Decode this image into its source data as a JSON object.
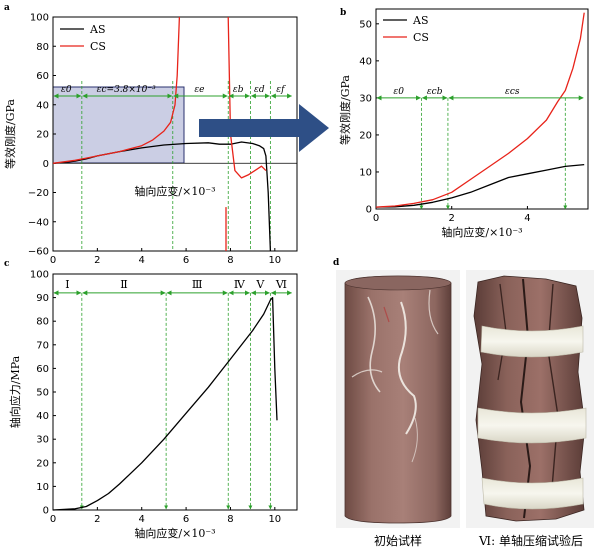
{
  "panels": {
    "a": "a",
    "b": "b",
    "c": "c",
    "d": "d"
  },
  "colors": {
    "AS": "#000000",
    "CS": "#e8231a",
    "guide": "#2ca02c",
    "arrow": "#2e4f86",
    "box_fill": "#b9bedb",
    "box_stroke": "#28306e"
  },
  "chart_data": [
    {
      "id": "a",
      "type": "line",
      "xlabel": "轴向应变/×10⁻³",
      "ylabel": "等效刚度/GPa",
      "xlim": [
        0,
        11
      ],
      "ylim": [
        -60,
        100
      ],
      "xticks": [
        "0",
        "2",
        "4",
        "6",
        "8",
        "10"
      ],
      "yticks": [
        "−60",
        "−40",
        "−20",
        "0",
        "20",
        "40",
        "60",
        "80",
        "100"
      ],
      "legend": [
        "AS",
        "CS"
      ],
      "legend_position": "top-left",
      "annotations": [
        "ε0",
        "εc=3.8×10⁻³",
        "εe",
        "εb",
        "εd",
        "εf"
      ],
      "series": [
        {
          "name": "AS",
          "x": [
            0,
            0.5,
            1,
            1.5,
            2,
            3,
            4,
            5,
            6,
            7,
            7.5,
            8,
            8.5,
            9,
            9.3,
            9.5,
            9.6,
            9.7,
            9.8
          ],
          "y": [
            0,
            0.5,
            1.5,
            3,
            5,
            8,
            10.5,
            12.5,
            13.5,
            14,
            13,
            13,
            14.5,
            13.5,
            12,
            10,
            5,
            -20,
            -60
          ]
        },
        {
          "name": "CS",
          "x": [
            0,
            0.5,
            1,
            1.5,
            2,
            3,
            4,
            4.5,
            5,
            5.3,
            5.5,
            5.6,
            5.7
          ],
          "y": [
            0,
            1,
            2,
            3.5,
            5,
            8,
            12,
            16,
            22,
            28,
            40,
            60,
            100
          ]
        },
        {
          "name": "CS",
          "x": [
            7.9,
            8,
            8.2,
            8.5,
            8.8,
            9.1,
            9.4,
            9.6
          ],
          "y": [
            100,
            20,
            -5,
            -10,
            -8,
            -5,
            -2,
            -5
          ]
        },
        {
          "name": "CS",
          "x": [
            7.8,
            7.8
          ],
          "y": [
            -30,
            -60
          ]
        }
      ]
    },
    {
      "id": "b",
      "type": "line",
      "xlabel": "轴向应变/×10⁻³",
      "ylabel": "等效刚度/GPa",
      "xlim": [
        0,
        5.6
      ],
      "ylim": [
        0,
        54
      ],
      "xticks": [
        "0",
        "2",
        "4"
      ],
      "yticks": [
        "0",
        "10",
        "20",
        "30",
        "40",
        "50"
      ],
      "legend": [
        "AS",
        "CS"
      ],
      "legend_position": "top-left",
      "annotations": [
        "ε0",
        "εcb",
        "εcs"
      ],
      "series": [
        {
          "name": "AS",
          "x": [
            0,
            0.5,
            1,
            1.5,
            2,
            2.5,
            3,
            3.5,
            4,
            4.5,
            5,
            5.5
          ],
          "y": [
            0.5,
            0.6,
            1,
            1.8,
            3,
            4.5,
            6.5,
            8.5,
            9.5,
            10.5,
            11.5,
            12
          ]
        },
        {
          "name": "CS",
          "x": [
            0,
            0.5,
            1,
            1.5,
            2,
            2.5,
            3,
            3.5,
            4,
            4.5,
            4.8,
            5,
            5.2,
            5.4,
            5.5
          ],
          "y": [
            0.5,
            0.8,
            1.5,
            2.5,
            4.5,
            8,
            11.5,
            15,
            19,
            24,
            29,
            32,
            38,
            46,
            53
          ]
        }
      ]
    },
    {
      "id": "c",
      "type": "line",
      "xlabel": "轴向应变/×10⁻³",
      "ylabel": "轴向应力/MPa",
      "xlim": [
        0,
        11
      ],
      "ylim": [
        0,
        100
      ],
      "xticks": [
        "0",
        "2",
        "4",
        "6",
        "8",
        "10"
      ],
      "yticks": [
        "0",
        "10",
        "20",
        "30",
        "40",
        "50",
        "60",
        "70",
        "80",
        "90",
        "100"
      ],
      "stages": [
        "Ⅰ",
        "Ⅱ",
        "Ⅲ",
        "Ⅳ",
        "Ⅴ",
        "Ⅵ"
      ],
      "series": [
        {
          "name": "stress",
          "x": [
            0,
            1,
            1.5,
            2,
            2.5,
            3,
            4,
            5,
            6,
            7,
            8,
            9,
            9.5,
            9.8,
            9.9,
            10,
            10.1
          ],
          "y": [
            0,
            0.5,
            1.5,
            4,
            7,
            11,
            20,
            30,
            41,
            52,
            64,
            76,
            83,
            89,
            90,
            60,
            38
          ]
        }
      ]
    }
  ],
  "photos": {
    "left_caption": "初始试样",
    "right_caption": "Ⅵ: 单轴压缩试验后"
  }
}
